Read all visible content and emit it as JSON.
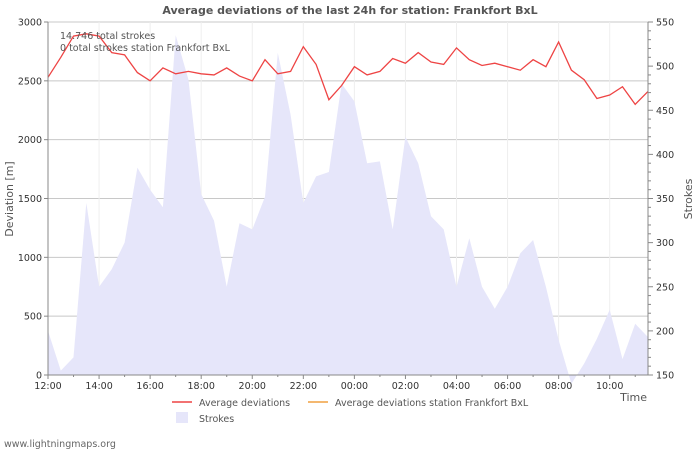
{
  "chart_data": {
    "type": "line",
    "title": "Average deviations of the last 24h for station: Frankfort BxL",
    "xlabel": "Time",
    "ylabel_left": "Deviation  [m]",
    "ylabel_right": "Strokes",
    "x_ticks": [
      "12:00",
      "14:00",
      "16:00",
      "18:00",
      "20:00",
      "22:00",
      "00:00",
      "02:00",
      "04:00",
      "06:00",
      "08:00",
      "10:00"
    ],
    "y_left_ticks": [
      "0",
      "500",
      "1000",
      "1500",
      "2000",
      "2500",
      "3000"
    ],
    "y_right_ticks": [
      "150",
      "200",
      "250",
      "300",
      "350",
      "400",
      "450",
      "500",
      "550"
    ],
    "ylim_left": [
      0,
      3000
    ],
    "ylim_right": [
      150,
      550
    ],
    "x_range_hours": [
      0,
      23.5
    ],
    "grid": true,
    "annotations": [
      "14.746 total strokes",
      "0 total strokes station Frankfort BxL"
    ],
    "legend": {
      "avg": "Average deviations",
      "avg_station": "Average deviations station Frankfort BxL",
      "strokes": "Strokes"
    },
    "colors": {
      "avg": "#ee4444",
      "avg_station": "#f0a040",
      "strokes_fill": "#e6e6fa"
    },
    "series": [
      {
        "name": "Average deviations",
        "x": [
          0,
          0.5,
          1,
          1.5,
          2,
          2.5,
          3,
          3.5,
          4,
          4.5,
          5,
          5.5,
          6,
          6.5,
          7,
          7.5,
          8,
          8.5,
          9,
          9.5,
          10,
          10.5,
          11,
          11.5,
          12,
          12.5,
          13,
          13.5,
          14,
          14.5,
          15,
          15.5,
          16,
          16.5,
          17,
          17.5,
          18,
          18.5,
          19,
          19.5,
          20,
          20.5,
          21,
          21.5,
          22,
          22.5,
          23,
          23.5
        ],
        "values": [
          2530,
          2700,
          2880,
          2900,
          2880,
          2740,
          2720,
          2570,
          2500,
          2610,
          2560,
          2580,
          2560,
          2550,
          2610,
          2540,
          2500,
          2680,
          2560,
          2580,
          2790,
          2640,
          2340,
          2460,
          2620,
          2550,
          2580,
          2690,
          2650,
          2740,
          2660,
          2640,
          2780,
          2680,
          2630,
          2650,
          2620,
          2590,
          2680,
          2620,
          2830,
          2590,
          2510,
          2350,
          2380,
          2450,
          2300,
          2410
        ]
      },
      {
        "name": "Strokes",
        "x": [
          0,
          0.5,
          1,
          1.5,
          2,
          2.5,
          3,
          3.5,
          4,
          4.5,
          5,
          5.5,
          6,
          6.5,
          7,
          7.5,
          8,
          8.5,
          9,
          9.5,
          10,
          10.5,
          11,
          11.5,
          12,
          12.5,
          13,
          13.5,
          14,
          14.5,
          15,
          15.5,
          16,
          16.5,
          17,
          17.5,
          18,
          18.5,
          19,
          19.5,
          20,
          20.5,
          21,
          21.5,
          22,
          22.5,
          23,
          23.5
        ],
        "values": [
          200,
          155,
          170,
          345,
          250,
          270,
          300,
          385,
          360,
          340,
          535,
          485,
          355,
          325,
          250,
          322,
          315,
          352,
          515,
          445,
          345,
          375,
          380,
          480,
          460,
          390,
          392,
          315,
          420,
          390,
          330,
          315,
          250,
          305,
          250,
          225,
          250,
          288,
          303,
          250,
          190,
          140,
          163,
          191,
          224,
          168,
          208,
          193
        ]
      }
    ]
  },
  "footer": "www.lightningmaps.org"
}
